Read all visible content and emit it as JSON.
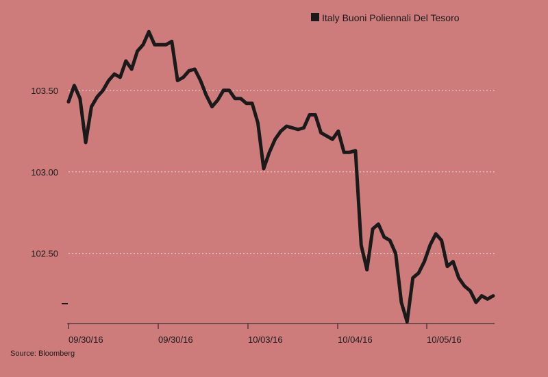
{
  "chart_data": {
    "type": "line",
    "title": "",
    "xlabel": "",
    "ylabel": "",
    "ylim": [
      102.07,
      103.97
    ],
    "y_ticks": [
      {
        "value": 103.5,
        "label": "103.50"
      },
      {
        "value": 103.0,
        "label": "103.00"
      },
      {
        "value": 102.5,
        "label": "102.50"
      }
    ],
    "x_tick_labels": [
      "09/30/16",
      "09/30/16",
      "10/03/16",
      "10/04/16",
      "10/05/16"
    ],
    "grid": "horizontal dotted",
    "legend_position": "top-right",
    "colors": {
      "background": "#cd7b7b",
      "line": "#1a1a1a",
      "grid": "#f3e1e1"
    },
    "series": [
      {
        "name": "Italy Buoni Poliennali Del Tesoro",
        "x": [
          0,
          2,
          4,
          6,
          7,
          8,
          9,
          10,
          11,
          12,
          14,
          15,
          16,
          17,
          18,
          19,
          20,
          21,
          22,
          23,
          24,
          25,
          26,
          27,
          28,
          29,
          30,
          31,
          32,
          33,
          34,
          35,
          36,
          37,
          38,
          39,
          40,
          41,
          42,
          43,
          44,
          45,
          46,
          47,
          48,
          49,
          50,
          51,
          52,
          53,
          54,
          55,
          56,
          57,
          58,
          59,
          60,
          61,
          62,
          63,
          64,
          65,
          66,
          67,
          68,
          69,
          70,
          71,
          72,
          73,
          74,
          75,
          76,
          77,
          78,
          79,
          80,
          81,
          82,
          83,
          84,
          85,
          86,
          87,
          88,
          89,
          90,
          91,
          92,
          93,
          94,
          95,
          96,
          97,
          98,
          99,
          100
        ],
        "values": [
          103.43,
          103.53,
          103.45,
          103.18,
          103.4,
          103.46,
          103.5,
          103.56,
          103.6,
          103.58,
          103.68,
          103.63,
          103.74,
          103.78,
          103.86,
          103.78,
          103.78,
          103.78,
          103.8,
          103.56,
          103.58,
          103.62,
          103.63,
          103.56,
          103.47,
          103.4,
          103.44,
          103.5,
          103.5,
          103.45,
          103.45,
          103.42,
          103.42,
          103.3,
          103.02,
          103.12,
          103.2,
          103.25,
          103.28,
          103.27,
          103.26,
          103.27,
          103.35,
          103.35,
          103.24,
          103.22,
          103.2,
          103.25,
          103.12,
          103.12,
          103.13,
          102.55,
          102.4,
          102.65,
          102.68,
          102.6,
          102.58,
          102.5,
          102.2,
          102.08,
          102.35,
          102.38,
          102.45,
          102.55,
          102.62,
          102.58,
          102.42,
          102.45,
          102.35,
          102.3,
          102.27,
          102.2,
          102.24,
          102.22,
          102.24,
          102.24,
          102.24,
          102.24,
          102.24,
          102.24,
          102.24,
          102.24,
          102.24,
          102.24,
          102.24,
          102.24,
          102.24,
          102.24,
          102.24,
          102.24,
          102.24,
          102.24,
          102.24,
          102.24,
          102.24,
          102.24,
          102.24
        ]
      }
    ]
  },
  "source_label": "Source: Bloomberg"
}
